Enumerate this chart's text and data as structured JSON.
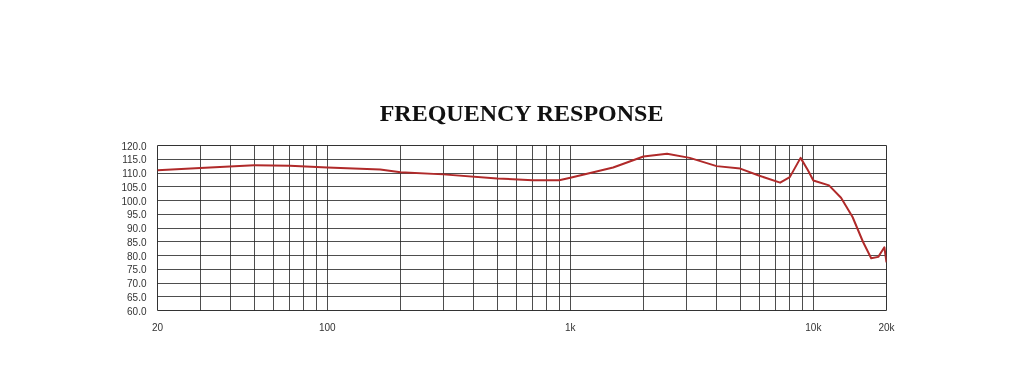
{
  "chart_data": {
    "type": "line",
    "title": "FREQUENCY RESPONSE",
    "x": [
      20,
      30,
      50,
      70,
      100,
      165,
      200,
      300,
      500,
      700,
      900,
      1000,
      1500,
      2000,
      2500,
      3100,
      4000,
      5000,
      6000,
      7300,
      8000,
      8860,
      9500,
      10000,
      11600,
      13000,
      14500,
      16000,
      17300,
      18500,
      19600,
      20000
    ],
    "series": [
      {
        "color": "#b02a2a",
        "values": [
          111,
          111.8,
          112.8,
          112.6,
          112,
          111.3,
          110.3,
          109.5,
          108,
          107.4,
          107.4,
          108.3,
          112,
          116,
          117,
          115.5,
          112.5,
          111.6,
          109,
          106.5,
          108.5,
          115.5,
          111,
          107.3,
          105.5,
          101,
          94,
          85,
          79,
          79.5,
          83,
          77.5
        ]
      }
    ],
    "log": "x",
    "grid": true,
    "marker": "none",
    "line_style": "solid",
    "xlim": [
      20,
      20000
    ],
    "xticks": [
      20,
      {
        "value": 30,
        "label": null
      },
      {
        "value": 40,
        "label": null
      },
      {
        "value": 50,
        "label": null
      },
      {
        "value": 60,
        "label": null
      },
      {
        "value": 70,
        "label": null
      },
      {
        "value": 80,
        "label": null
      },
      {
        "value": 90,
        "label": null
      },
      100,
      {
        "value": 200,
        "label": null
      },
      {
        "value": 300,
        "label": null
      },
      {
        "value": 400,
        "label": null
      },
      {
        "value": 500,
        "label": null
      },
      {
        "value": 600,
        "label": null
      },
      {
        "value": 700,
        "label": null
      },
      {
        "value": 800,
        "label": null
      },
      {
        "value": 900,
        "label": null
      },
      {
        "value": 1000,
        "label": "1k"
      },
      {
        "value": 2000,
        "label": null
      },
      {
        "value": 3000,
        "label": null
      },
      {
        "value": 4000,
        "label": null
      },
      {
        "value": 5000,
        "label": null
      },
      {
        "value": 6000,
        "label": null
      },
      {
        "value": 7000,
        "label": null
      },
      {
        "value": 8000,
        "label": null
      },
      {
        "value": 9000,
        "label": null
      },
      {
        "value": 10000,
        "label": "10k"
      },
      {
        "value": 20000,
        "label": "20k"
      }
    ],
    "ylim": [
      60,
      120
    ],
    "yticks": [
      {
        "value": 60,
        "label": "60.0"
      },
      {
        "value": 65,
        "label": "65.0"
      },
      {
        "value": 70,
        "label": "70.0"
      },
      {
        "value": 75,
        "label": "75.0"
      },
      {
        "value": 80,
        "label": "80.0"
      },
      {
        "value": 85,
        "label": "85.0"
      },
      {
        "value": 90,
        "label": "90.0"
      },
      {
        "value": 95,
        "label": "95.0"
      },
      {
        "value": 100,
        "label": "100.0"
      },
      {
        "value": 105,
        "label": "105.0"
      },
      {
        "value": 110,
        "label": "110.0"
      },
      {
        "value": 115,
        "label": "115.0"
      },
      {
        "value": 120,
        "label": "120.0"
      }
    ]
  }
}
